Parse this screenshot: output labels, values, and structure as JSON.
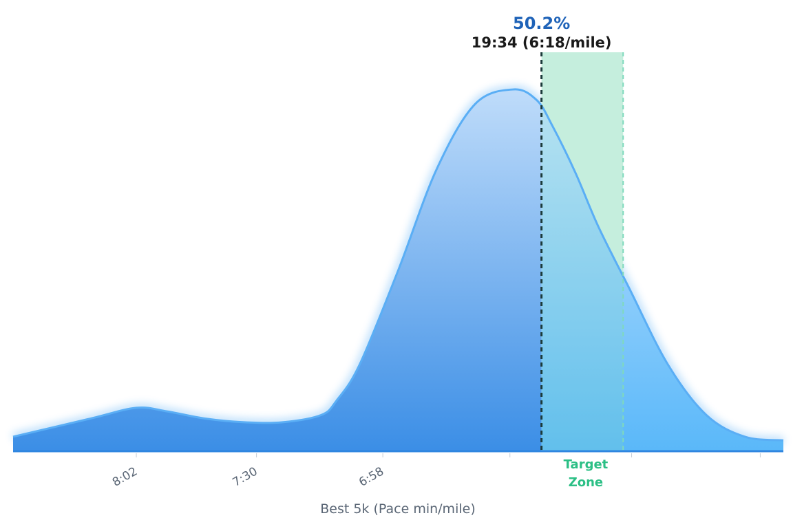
{
  "chart_data": {
    "type": "area",
    "xlabel": "Best 5k (Pace min/mile)",
    "x_ticks": [
      "8:02",
      "7:30",
      "6:58"
    ],
    "x_axis_direction": "pace decreasing to the right",
    "x": [
      0.0,
      0.1,
      0.16,
      0.2,
      0.25,
      0.3,
      0.35,
      0.4,
      0.42,
      0.45,
      0.5,
      0.55,
      0.6,
      0.65,
      0.68,
      0.7,
      0.73,
      0.76,
      0.8,
      0.85,
      0.9,
      0.95,
      1.0
    ],
    "density": [
      0.04,
      0.09,
      0.12,
      0.11,
      0.09,
      0.08,
      0.08,
      0.1,
      0.14,
      0.24,
      0.5,
      0.78,
      0.96,
      1.0,
      0.97,
      0.9,
      0.77,
      0.62,
      0.45,
      0.24,
      0.1,
      0.04,
      0.03
    ],
    "marker": {
      "percentile": "50.2%",
      "time": "19:34 (6:18/mile)",
      "x": 0.686
    },
    "target_zone": {
      "label_line1": "Target",
      "label_line2": "Zone",
      "x_start": 0.686,
      "x_end": 0.792
    },
    "grid": false,
    "legend": "none",
    "colors": {
      "fill_top": "#bfdcfa",
      "fill_bottom": "#3b8ee6",
      "fill_right_top": "#c9e6ff",
      "fill_right_bottom": "#5ab8f9",
      "stroke": "#5aaef5",
      "baseline": "#2f86e0",
      "zone_fill": "#d9f4e6",
      "zone_line": "#7fd9bd",
      "zone_label": "#2bbf85",
      "marker_line": "#1c3a3a",
      "percent_text": "#1f63b8"
    }
  }
}
